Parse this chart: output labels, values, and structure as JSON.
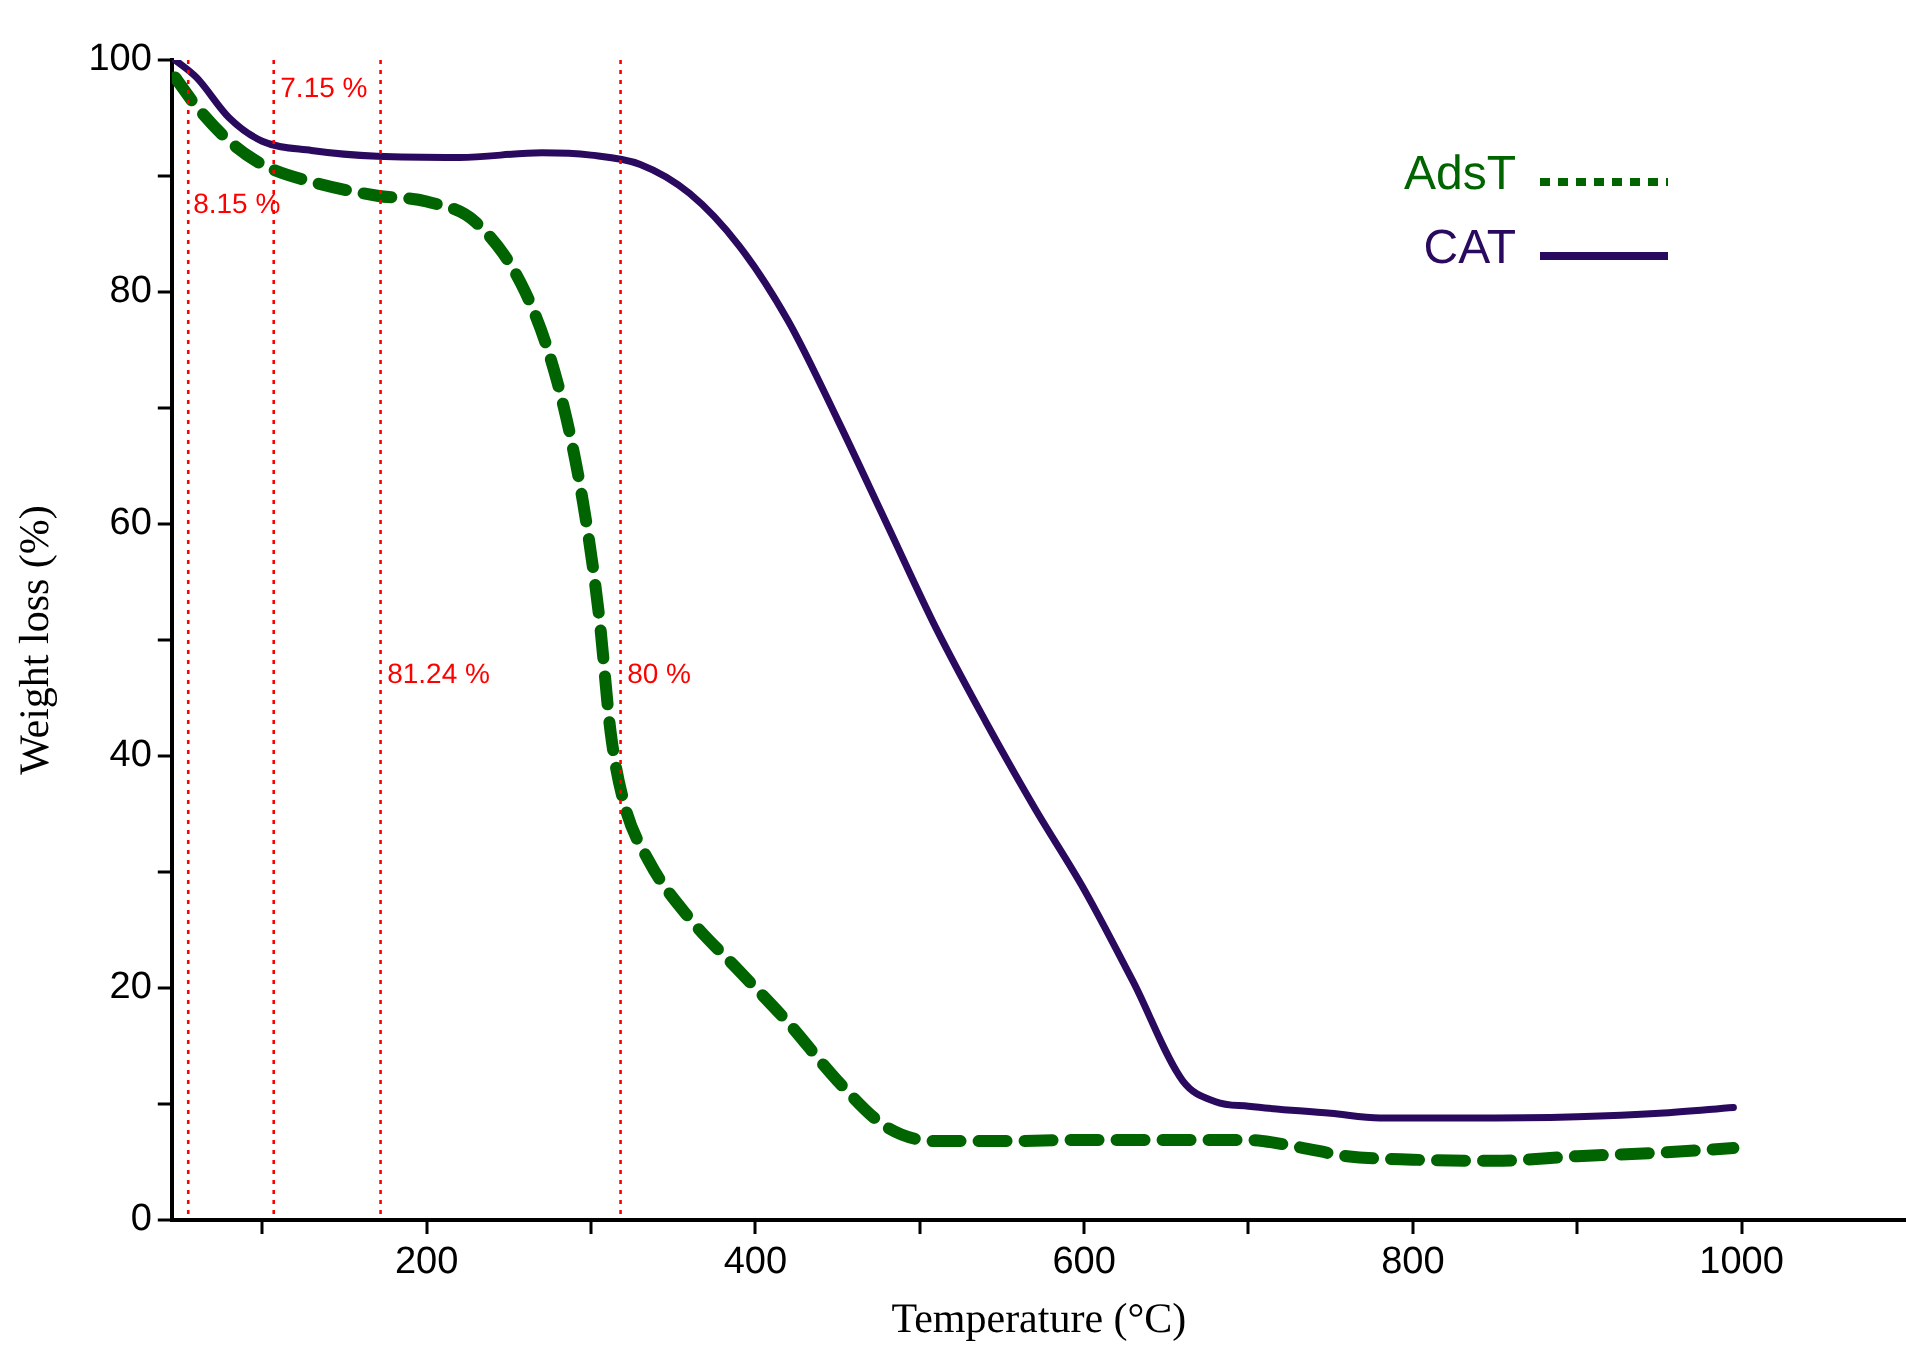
{
  "chart_data": {
    "type": "line",
    "xlabel": "Temperature (°C)",
    "ylabel": "Weight loss (%)",
    "xlim": [
      45,
      1100
    ],
    "xticks": [
      {
        "value": 100,
        "label": null
      },
      200,
      {
        "value": 300,
        "label": null
      },
      400,
      {
        "value": 500,
        "label": null
      },
      600,
      {
        "value": 700,
        "label": null
      },
      800,
      {
        "value": 900,
        "label": null
      },
      1000
    ],
    "ylim": [
      0,
      100
    ],
    "yticks": [
      0,
      {
        "value": 10,
        "label": null
      },
      20,
      {
        "value": 30,
        "label": null
      },
      40,
      {
        "value": 50,
        "label": null
      },
      60,
      {
        "value": 70,
        "label": null
      },
      80,
      {
        "value": 90,
        "label": null
      },
      100
    ],
    "grid": false,
    "legend": "top right",
    "marker": "none",
    "series": [
      {
        "name": "AdsT",
        "color": "#006400",
        "line_style": "dashed",
        "x": [
          47,
          60,
          80,
          100,
          130,
          170,
          200,
          230,
          260,
          280,
          295,
          305,
          312,
          320,
          335,
          360,
          390,
          420,
          450,
          480,
          510,
          550,
          600,
          700,
          730,
          760,
          800,
          850,
          900,
          950,
          995
        ],
        "values": [
          98.5,
          96,
          93,
          91,
          89.5,
          88.3,
          87.8,
          86,
          80,
          72,
          62,
          52,
          42,
          36,
          31,
          26,
          21.5,
          17,
          12,
          8,
          6.8,
          6.8,
          6.9,
          6.9,
          6.3,
          5.5,
          5.2,
          5.1,
          5.5,
          5.8,
          6.2
        ]
      },
      {
        "name": "CAT",
        "color": "#2a0a5e",
        "line_style": "solid",
        "x": [
          47,
          60,
          80,
          100,
          130,
          170,
          220,
          270,
          300,
          330,
          360,
          390,
          420,
          450,
          480,
          510,
          540,
          570,
          600,
          630,
          660,
          680,
          700,
          750,
          780,
          850,
          900,
          950,
          995
        ],
        "values": [
          100,
          98.5,
          95,
          93,
          92.2,
          91.7,
          91.6,
          92,
          91.8,
          91,
          88.5,
          84,
          77.5,
          69,
          60,
          51,
          43,
          35.5,
          28.5,
          20.5,
          12,
          10.2,
          9.8,
          9.2,
          8.8,
          8.8,
          8.9,
          9.2,
          9.7
        ]
      }
    ],
    "ref_lines": [
      {
        "axis": "x",
        "value": 55,
        "color": "#ff0000",
        "line_style": "dotted"
      },
      {
        "axis": "x",
        "value": 107,
        "color": "#ff0000",
        "line_style": "dotted"
      },
      {
        "axis": "x",
        "value": 172,
        "color": "#ff0000",
        "line_style": "dotted"
      },
      {
        "axis": "x",
        "value": 318,
        "color": "#ff0000",
        "line_style": "dotted"
      }
    ],
    "annotations": [
      {
        "text": "7.15 %",
        "x": 111,
        "y": 97.5
      },
      {
        "text": "8.15 %",
        "x": 58,
        "y": 87.5
      },
      {
        "text": "81.24 %",
        "x": 176,
        "y": 47
      },
      {
        "text": "80 %",
        "x": 322,
        "y": 47
      }
    ]
  }
}
